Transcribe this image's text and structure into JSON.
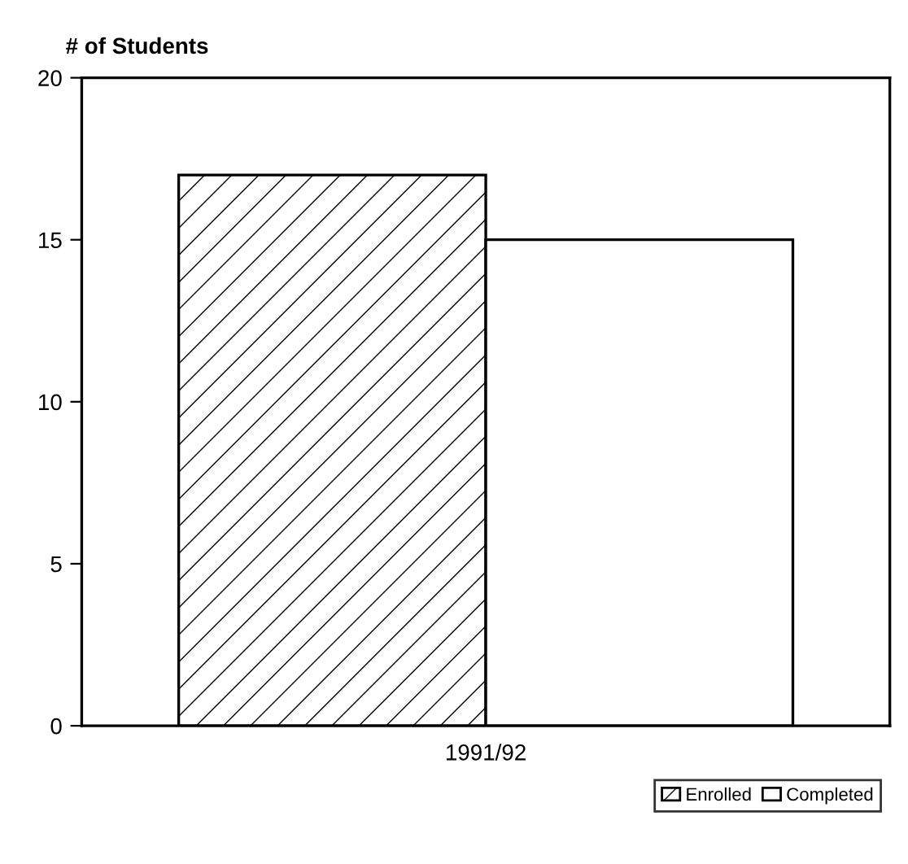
{
  "chart_data": {
    "type": "bar",
    "ylabel": "# of Students",
    "categories": [
      "1991/92"
    ],
    "series": [
      {
        "name": "Enrolled",
        "color": "#000000",
        "values": [
          17
        ]
      },
      {
        "name": "Completed",
        "color": "#ffffff",
        "values": [
          15
        ]
      }
    ],
    "ylim": [
      0,
      20
    ],
    "yticks": [
      0,
      5,
      10,
      15,
      20
    ],
    "grid": false,
    "legend": "bottom right"
  }
}
